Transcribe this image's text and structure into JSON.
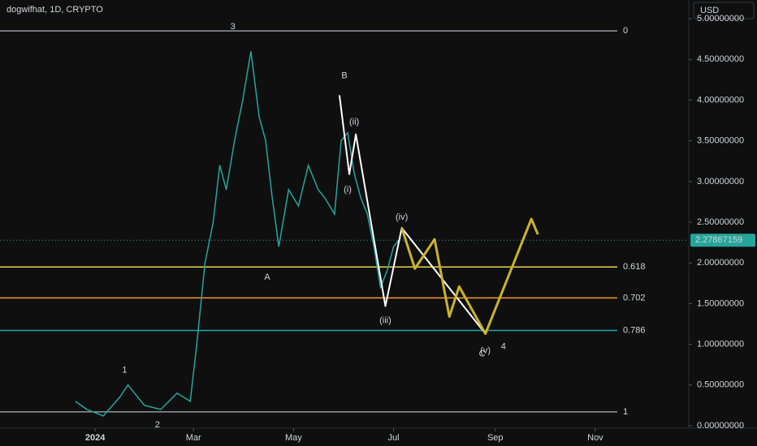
{
  "chart_data": {
    "type": "line",
    "title": "dogwifhat, 1D, CRYPTO",
    "currency": "USD",
    "color": "#26a69a",
    "x": [
      -12,
      -5,
      5,
      15,
      20,
      30,
      40,
      50,
      58,
      62,
      67,
      72,
      76,
      80,
      85,
      90,
      95,
      100,
      104,
      108,
      112,
      118,
      124,
      130,
      136,
      140,
      146,
      150,
      154,
      158,
      162,
      166,
      170,
      174,
      178,
      182,
      186
    ],
    "values": [
      0.3,
      0.2,
      0.12,
      0.35,
      0.5,
      0.25,
      0.2,
      0.4,
      0.3,
      1.0,
      2.0,
      2.5,
      3.2,
      2.9,
      3.5,
      4.0,
      4.6,
      3.8,
      3.5,
      2.8,
      2.2,
      2.9,
      2.7,
      3.2,
      2.9,
      2.8,
      2.6,
      3.5,
      3.6,
      3.1,
      2.8,
      2.6,
      2.2,
      1.7,
      1.9,
      2.2,
      2.3
    ],
    "xlim": [
      -58,
      362
    ],
    "xticks": [
      {
        "value": 0,
        "label": "2024"
      },
      {
        "value": 60,
        "label": "Mar"
      },
      {
        "value": 121,
        "label": "May"
      },
      {
        "value": 182,
        "label": "Jul"
      },
      {
        "value": 244,
        "label": "Sep"
      },
      {
        "value": 305,
        "label": "Nov"
      }
    ],
    "ylim": [
      -0.03,
      5.23
    ],
    "yticks": [
      {
        "value": 0,
        "label": "0.00000000"
      },
      {
        "value": 0.5,
        "label": "0.50000000"
      },
      {
        "value": 1,
        "label": "1.00000000"
      },
      {
        "value": 1.5,
        "label": "1.50000000"
      },
      {
        "value": 2,
        "label": "2.00000000"
      },
      {
        "value": 2.5,
        "label": "2.50000000"
      },
      {
        "value": 3,
        "label": "3.00000000"
      },
      {
        "value": 3.5,
        "label": "3.50000000"
      },
      {
        "value": 4,
        "label": "4.00000000"
      },
      {
        "value": 4.5,
        "label": "4.50000000"
      },
      {
        "value": 5,
        "label": "5.00000000"
      }
    ],
    "last_price": 2.27867159,
    "levels": [
      {
        "value": 4.85,
        "label": "0",
        "color": "#9598a1"
      },
      {
        "value": 1.95,
        "label": "0.618",
        "color": "#e8d44d"
      },
      {
        "value": 1.57,
        "label": "0.702",
        "color": "#f39c2a"
      },
      {
        "value": 1.17,
        "label": "0.786",
        "color": "#22a6b3"
      },
      {
        "value": 0.17,
        "label": "1",
        "color": "#9598a1"
      }
    ],
    "paths": [
      {
        "color": "#ffffff",
        "x": [
          149,
          155,
          159,
          177,
          187,
          238
        ],
        "values": [
          4.06,
          3.09,
          3.58,
          1.47,
          2.43,
          1.13
        ]
      },
      {
        "color": "#c9b42c",
        "x": [
          187,
          195,
          207,
          216,
          222,
          238,
          266,
          270
        ],
        "values": [
          2.43,
          1.93,
          2.29,
          1.34,
          1.71,
          1.13,
          2.54,
          2.35
        ]
      }
    ],
    "annotations": [
      {
        "text": "3",
        "x": 84,
        "y": 4.9,
        "color": "#f39c2a"
      },
      {
        "text": "1",
        "x": 18,
        "y": 0.68,
        "color": "#f39c2a"
      },
      {
        "text": "2",
        "x": 38,
        "y": 0.01,
        "color": "#f39c2a"
      },
      {
        "text": "A",
        "x": 105,
        "y": 1.82,
        "color": "#e8d44d"
      },
      {
        "text": "B",
        "x": 152,
        "y": 4.3,
        "color": "#e8d44d"
      },
      {
        "text": "(i)",
        "x": 154,
        "y": 2.9,
        "color": "#ffffff"
      },
      {
        "text": "(ii)",
        "x": 158,
        "y": 3.73,
        "color": "#ffffff"
      },
      {
        "text": "(iii)",
        "x": 177,
        "y": 1.29,
        "color": "#ffffff"
      },
      {
        "text": "(iv)",
        "x": 187,
        "y": 2.56,
        "color": "#ffffff"
      },
      {
        "text": "C",
        "x": 236,
        "y": 0.88,
        "color": "#f39c2a"
      },
      {
        "text": "(v)",
        "x": 238,
        "y": 0.92,
        "color": "#ffffff"
      },
      {
        "text": "4",
        "x": 249,
        "y": 0.97,
        "color": "#f39c2a"
      }
    ]
  }
}
